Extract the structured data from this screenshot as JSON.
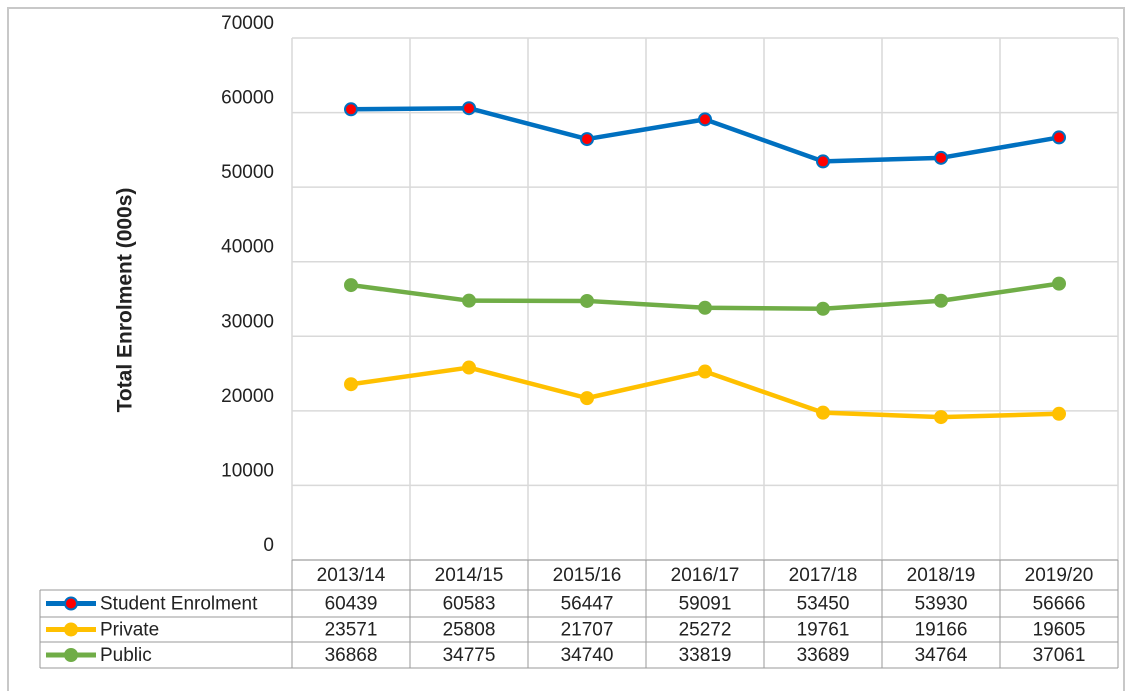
{
  "chart_data": {
    "type": "line",
    "y_axis_label": "Total Enrolment (000s)",
    "categories": [
      "2013/14",
      "2014/15",
      "2015/16",
      "2016/17",
      "2017/18",
      "2018/19",
      "2019/20"
    ],
    "series": [
      {
        "name": "Student Enrolment",
        "color": "#0070c0",
        "marker_color": "#ff0000",
        "values": [
          60439,
          60583,
          56447,
          59091,
          53450,
          53930,
          56666
        ]
      },
      {
        "name": "Private",
        "color": "#ffc000",
        "marker_color": "#ffc000",
        "values": [
          23571,
          25808,
          21707,
          25272,
          19761,
          19166,
          19605
        ]
      },
      {
        "name": "Public",
        "color": "#70ad47",
        "marker_color": "#70ad47",
        "values": [
          36868,
          34775,
          34740,
          33819,
          33689,
          34764,
          37061
        ]
      }
    ],
    "ylim": [
      0,
      70000
    ],
    "yticks": [
      0,
      10000,
      20000,
      30000,
      40000,
      50000,
      60000,
      70000
    ],
    "grid": true,
    "data_table": true
  }
}
